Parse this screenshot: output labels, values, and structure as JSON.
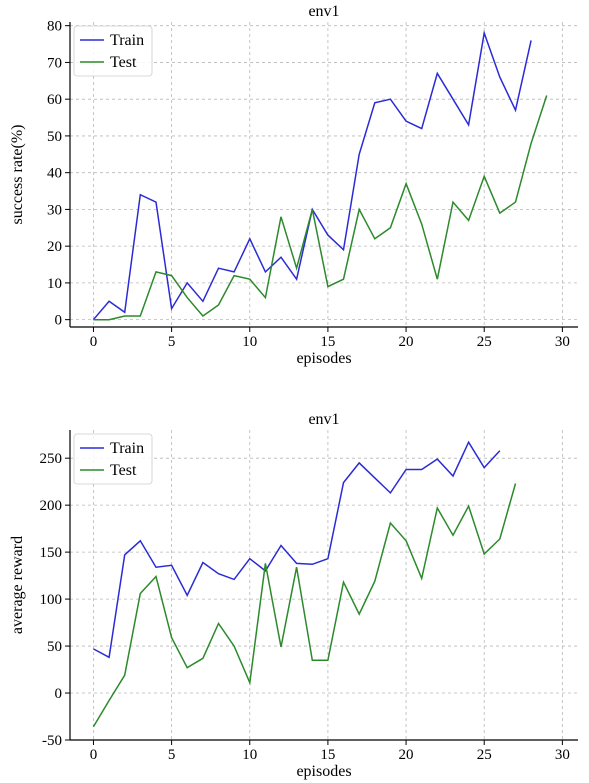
{
  "chart_data": [
    {
      "type": "line",
      "title": "env1",
      "xlabel": "episodes",
      "ylabel": "success rate(%)",
      "xlim": [
        -1.5,
        31
      ],
      "ylim": [
        -2,
        81
      ],
      "xticks": [
        0,
        5,
        10,
        15,
        20,
        25,
        30
      ],
      "yticks": [
        0,
        10,
        20,
        30,
        40,
        50,
        60,
        70,
        80
      ],
      "grid": true,
      "legend_position": "upper-left",
      "series": [
        {
          "name": "Train",
          "color": "#2b2bd6",
          "x": [
            0,
            1,
            2,
            3,
            4,
            5,
            6,
            7,
            8,
            9,
            10,
            11,
            12,
            13,
            14,
            15,
            16,
            17,
            18,
            19,
            20,
            21,
            22,
            23,
            24,
            25,
            26,
            27,
            28
          ],
          "y": [
            0,
            5,
            2,
            34,
            32,
            3,
            10,
            5,
            14,
            13,
            22,
            13,
            17,
            11,
            30,
            23,
            19,
            45,
            59,
            60,
            54,
            52,
            67,
            60,
            53,
            78,
            66,
            57,
            76
          ]
        },
        {
          "name": "Test",
          "color": "#2c8a2c",
          "x": [
            0,
            1,
            2,
            3,
            4,
            5,
            6,
            7,
            8,
            9,
            10,
            11,
            12,
            13,
            14,
            15,
            16,
            17,
            18,
            19,
            20,
            21,
            22,
            23,
            24,
            25,
            26,
            27,
            28,
            29
          ],
          "y": [
            0,
            0,
            1,
            1,
            13,
            12,
            6,
            1,
            4,
            12,
            11,
            6,
            28,
            14,
            30,
            9,
            11,
            30,
            22,
            25,
            37,
            26,
            11,
            32,
            27,
            39,
            29,
            32,
            48,
            61
          ]
        }
      ]
    },
    {
      "type": "line",
      "title": "env1",
      "xlabel": "episodes",
      "ylabel": "average reward",
      "xlim": [
        -1.5,
        31
      ],
      "ylim": [
        -50,
        280
      ],
      "xticks": [
        0,
        5,
        10,
        15,
        20,
        25,
        30
      ],
      "yticks": [
        -50,
        0,
        50,
        100,
        150,
        200,
        250
      ],
      "grid": true,
      "legend_position": "upper-left",
      "series": [
        {
          "name": "Train",
          "color": "#2b2bd6",
          "x": [
            0,
            1,
            2,
            3,
            4,
            5,
            6,
            7,
            8,
            9,
            10,
            11,
            12,
            13,
            14,
            15,
            16,
            17,
            18,
            19,
            20,
            21,
            22,
            23,
            24,
            25,
            26
          ],
          "y": [
            47,
            38,
            147,
            162,
            134,
            136,
            104,
            139,
            127,
            121,
            143,
            130,
            157,
            138,
            137,
            143,
            224,
            245,
            229,
            213,
            238,
            238,
            249,
            231,
            267,
            240,
            258
          ]
        },
        {
          "name": "Test",
          "color": "#2c8a2c",
          "x": [
            0,
            1,
            2,
            3,
            4,
            5,
            6,
            7,
            8,
            9,
            10,
            11,
            12,
            13,
            14,
            15,
            16,
            17,
            18,
            19,
            20,
            21,
            22,
            23,
            24,
            25,
            26,
            27
          ],
          "y": [
            -36,
            -8,
            19,
            106,
            124,
            59,
            27,
            37,
            74,
            50,
            11,
            138,
            49,
            134,
            35,
            35,
            118,
            84,
            119,
            181,
            162,
            122,
            197,
            168,
            199,
            148,
            164,
            223
          ]
        }
      ]
    }
  ]
}
